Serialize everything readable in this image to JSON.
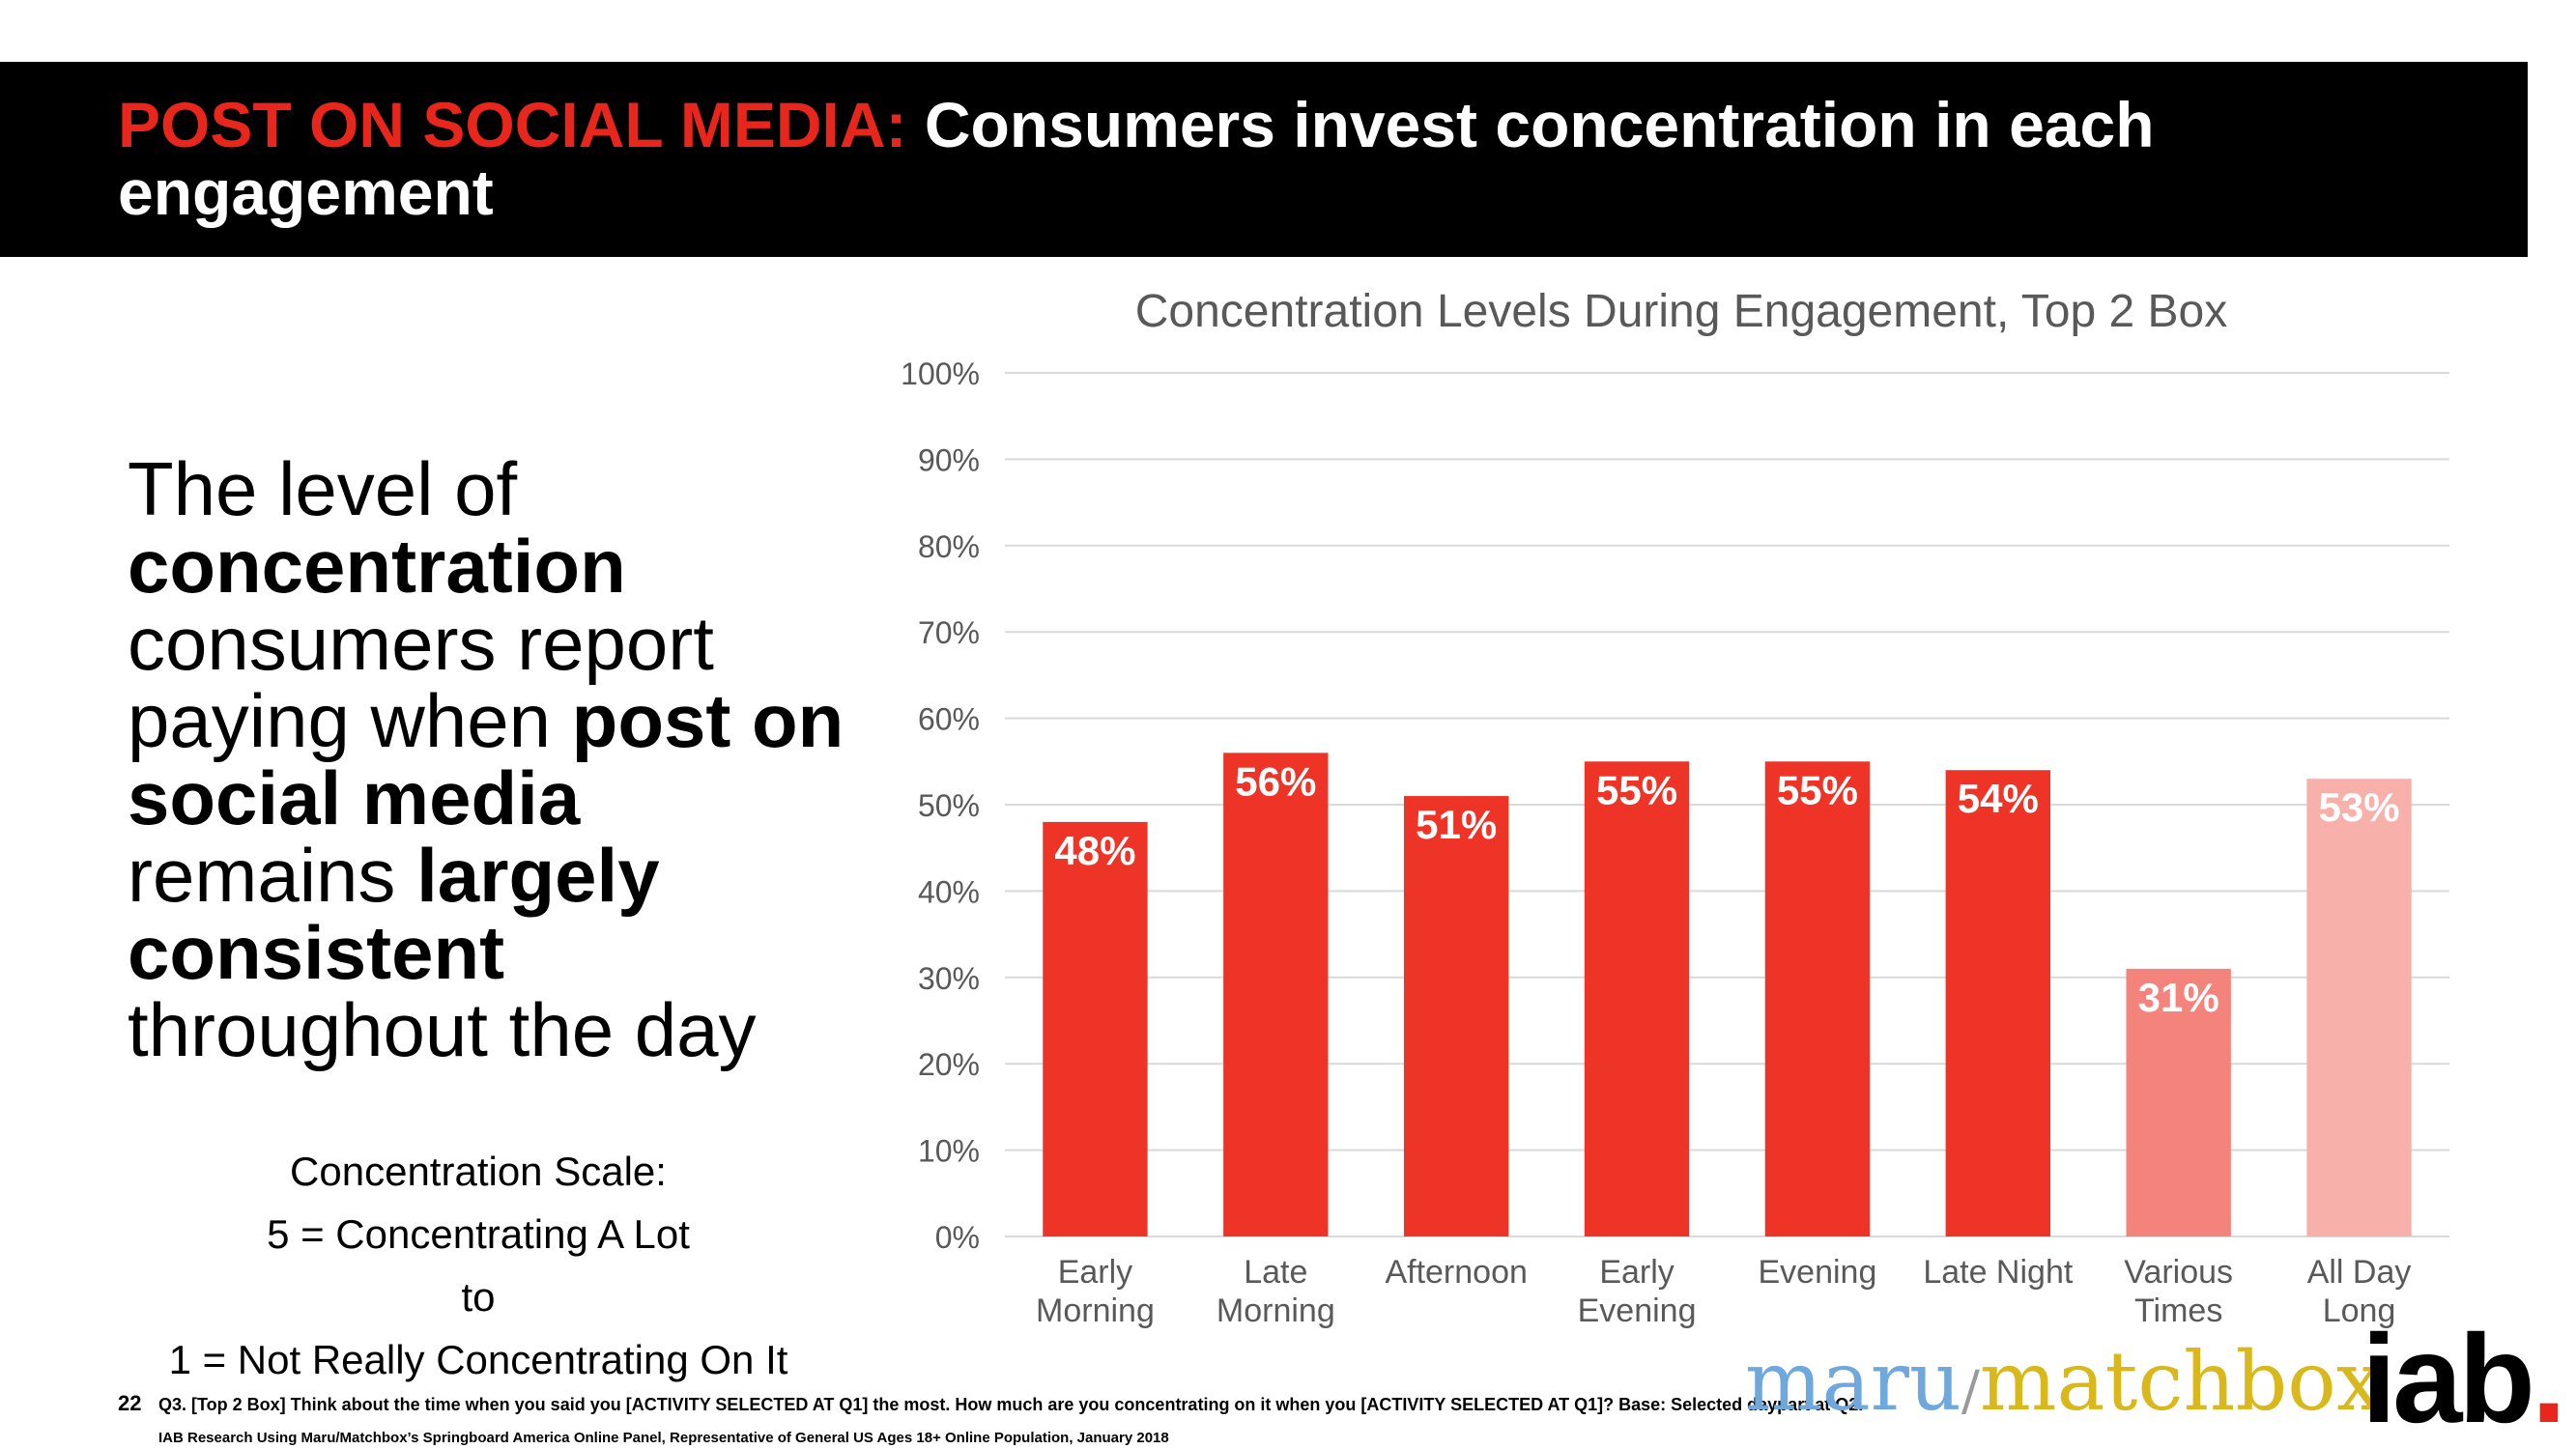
{
  "slide": {
    "title_accent": "POST ON SOCIAL MEDIA:",
    "title_main": "Consumers invest concentration in each engagement",
    "body": {
      "p1": "The level of",
      "b1": "concentration",
      "p2": "consumers report paying when",
      "b2": "post on social media",
      "p3": "remains",
      "b3": "largely consistent",
      "p4": "throughout the day"
    },
    "scale": {
      "line1": "Concentration Scale:",
      "line2": "5 = Concentrating A Lot",
      "line3": "to",
      "line4": "1 = Not Really Concentrating On It"
    },
    "page_number": "22",
    "footnote1": "Q3. [Top 2 Box] Think about the time when you said you [ACTIVITY SELECTED AT Q1] the most.  How much are you concentrating on it when you [ACTIVITY SELECTED AT Q1]? Base: Selected daypart at Q2.",
    "footnote2": "IAB Research Using Maru/Matchbox’s Springboard America Online Panel, Representative of General US Ages 18+ Online Population, January 2018",
    "logo": {
      "maru": "maru",
      "slash": "/",
      "matchbox": "matchbox",
      "iab": "iab",
      "iab_dot": "."
    }
  },
  "colors": {
    "accent": "#e8261c",
    "bar_main": "#ee3427",
    "bar_various": "#f4837c",
    "bar_allday": "#f7b0aa"
  },
  "chart_data": {
    "type": "bar",
    "title": "Concentration Levels During Engagement, Top 2 Box",
    "categories": [
      [
        "Early",
        "Morning"
      ],
      [
        "Late",
        "Morning"
      ],
      [
        "Afternoon"
      ],
      [
        "Early",
        "Evening"
      ],
      [
        "Evening"
      ],
      [
        "Late Night"
      ],
      [
        "Various",
        "Times"
      ],
      [
        "All Day",
        "Long"
      ]
    ],
    "values": [
      48,
      56,
      51,
      55,
      55,
      54,
      31,
      53
    ],
    "labels": [
      "48%",
      "56%",
      "51%",
      "55%",
      "55%",
      "54%",
      "31%",
      "53%"
    ],
    "bar_colors": [
      "#ee3427",
      "#ee3427",
      "#ee3427",
      "#ee3427",
      "#ee3427",
      "#ee3427",
      "#f4837c",
      "#f7b0aa"
    ],
    "yticks": [
      "0%",
      "10%",
      "20%",
      "30%",
      "40%",
      "50%",
      "60%",
      "70%",
      "80%",
      "90%",
      "100%"
    ],
    "ylim": [
      0,
      100
    ],
    "grid": true
  }
}
